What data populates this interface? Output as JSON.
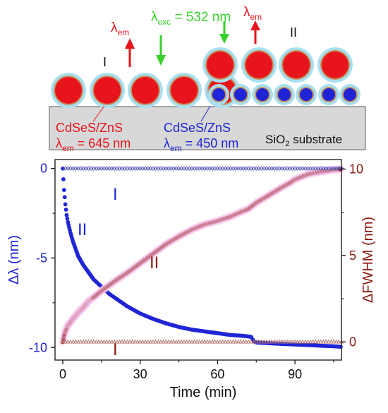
{
  "colors": {
    "red": "#e8141c",
    "blue": "#1f25d6",
    "dark_red": "#8b1a12",
    "green": "#39d12a",
    "shell": "#a8dff0",
    "substrate": "#d8d8d8"
  },
  "schematic": {
    "excitation": {
      "symbol": "λ",
      "subscript": "exc",
      "value": " = 532 nm"
    },
    "emission_label": {
      "symbol": "λ",
      "subscript": "em"
    },
    "label_I": "I",
    "label_II": "II",
    "red_dots": {
      "name": "CdSeS/ZnS",
      "lambda": "λ",
      "sub": "em",
      "value": " = 645 nm"
    },
    "blue_dots": {
      "name": "CdSeS/ZnS",
      "lambda": "λ",
      "sub": "em",
      "value": " = 450 nm"
    },
    "substrate": {
      "prefix": "SiO",
      "sub": "2",
      "suffix": " substrate"
    }
  },
  "chart_data": {
    "type": "scatter",
    "xlabel": "Time (min)",
    "ylabel_left": "Δλ (nm)",
    "ylabel_right": "ΔFWHM (nm)",
    "xlim": [
      -3,
      108
    ],
    "ylim_left": [
      -10.7,
      0.5
    ],
    "ylim_right": [
      -1.05,
      10.55
    ],
    "x_ticks": [
      "0",
      "30",
      "60",
      "90"
    ],
    "y_left_ticks": [
      "0",
      "-5",
      "-10"
    ],
    "y_right_ticks": [
      "0",
      "5",
      "10"
    ],
    "annotations": [
      "I",
      "II",
      "II",
      "I"
    ],
    "series": [
      {
        "axis": "left",
        "color": "#1f25d6",
        "marker": "filled-circle",
        "x": [
          0,
          0.5,
          1,
          1.5,
          2,
          3,
          4,
          5,
          6,
          8,
          10,
          12,
          15,
          18,
          21,
          25,
          30,
          35,
          40,
          45,
          50,
          55,
          60,
          65,
          70,
          73,
          74,
          75,
          80,
          85,
          90,
          95,
          100,
          105,
          108
        ],
        "y": [
          0,
          -1.2,
          -2.0,
          -2.6,
          -3.0,
          -3.6,
          -4.1,
          -4.5,
          -4.9,
          -5.4,
          -5.8,
          -6.2,
          -6.6,
          -7.0,
          -7.3,
          -7.7,
          -8.1,
          -8.4,
          -8.65,
          -8.85,
          -9.0,
          -9.1,
          -9.2,
          -9.3,
          -9.35,
          -9.4,
          -9.65,
          -9.72,
          -9.76,
          -9.8,
          -9.83,
          -9.86,
          -9.9,
          -9.93,
          -9.96
        ]
      },
      {
        "axis": "right",
        "color": "#8b1a12",
        "marker": "filled-circle",
        "x": [
          0,
          0.5,
          1,
          2,
          4,
          6,
          8,
          10,
          15,
          20,
          25,
          30,
          35,
          40,
          45,
          50,
          55,
          60,
          62,
          64,
          65,
          68,
          72,
          75,
          80,
          85,
          88,
          90,
          95,
          100,
          105,
          108
        ],
        "y": [
          0,
          0.35,
          0.6,
          0.95,
          1.35,
          1.7,
          2.0,
          2.35,
          2.95,
          3.5,
          4.0,
          4.55,
          5.1,
          5.65,
          6.1,
          6.5,
          6.8,
          7.0,
          7.1,
          7.2,
          7.25,
          7.45,
          7.7,
          8.05,
          8.5,
          8.95,
          9.2,
          9.4,
          9.7,
          9.85,
          9.95,
          10.0
        ]
      },
      {
        "axis": "left",
        "color": "#4a4ab8",
        "marker": "open-diamond",
        "x": [
          0,
          108
        ],
        "y": [
          0,
          0
        ]
      },
      {
        "axis": "right",
        "color": "#b0706a",
        "marker": "open-triangle",
        "x": [
          0,
          108
        ],
        "y": [
          0,
          0
        ]
      }
    ]
  }
}
